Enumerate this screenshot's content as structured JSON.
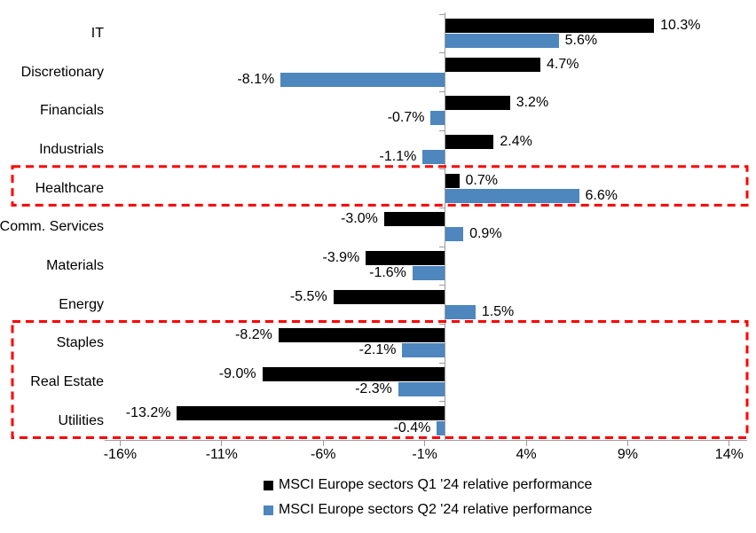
{
  "chart_data": {
    "type": "bar",
    "orientation": "horizontal",
    "title": "",
    "categories": [
      "IT",
      "Discretionary",
      "Financials",
      "Industrials",
      "Healthcare",
      "Comm. Services",
      "Materials",
      "Energy",
      "Staples",
      "Real Estate",
      "Utilities"
    ],
    "series": [
      {
        "name": "MSCI Europe sectors Q1 '24 relative performance",
        "color": "#000000",
        "values": [
          10.3,
          4.7,
          3.2,
          2.4,
          0.7,
          -3.0,
          -3.9,
          -5.5,
          -8.2,
          -9.0,
          -13.2
        ],
        "labels": [
          "10.3%",
          "4.7%",
          "3.2%",
          "2.4%",
          "0.7%",
          "-3.0%",
          "-3.9%",
          "-5.5%",
          "-8.2%",
          "-9.0%",
          "-13.2%"
        ]
      },
      {
        "name": "MSCI Europe sectors Q2 '24 relative performance",
        "color": "#4E86BE",
        "values": [
          5.6,
          -8.1,
          -0.7,
          -1.1,
          6.6,
          0.9,
          -1.6,
          1.5,
          -2.1,
          -2.3,
          -0.4
        ],
        "labels": [
          "5.6%",
          "-8.1%",
          "-0.7%",
          "-1.1%",
          "6.6%",
          "0.9%",
          "-1.6%",
          "1.5%",
          "-2.1%",
          "-2.3%",
          "-0.4%"
        ]
      }
    ],
    "x_axis": {
      "min": -16,
      "max": 14,
      "tick_values": [
        -16,
        -11,
        -6,
        -1,
        4,
        9,
        14
      ],
      "tick_labels": [
        "-16%",
        "-11%",
        "-6%",
        "-1%",
        "4%",
        "9%",
        "14%"
      ]
    },
    "grid": false,
    "legend_position": "bottom",
    "axis_color": "#9B9B9B",
    "text_color": "#000000",
    "highlights": [
      {
        "name": "highlight-box-healthcare",
        "categories": [
          "Healthcare"
        ],
        "color": "#FF0000"
      },
      {
        "name": "highlight-box-defensives",
        "categories": [
          "Staples",
          "Real Estate",
          "Utilities"
        ],
        "color": "#FF0000"
      }
    ]
  }
}
